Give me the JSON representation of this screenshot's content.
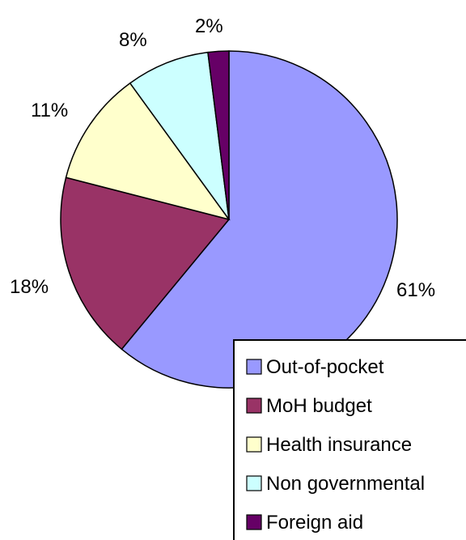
{
  "chart_data": {
    "type": "pie",
    "title": "",
    "slices": [
      {
        "label": "Out-of-pocket",
        "value": 61,
        "display": "61%",
        "color": "#9999ff"
      },
      {
        "label": "MoH budget",
        "value": 18,
        "display": "18%",
        "color": "#993366"
      },
      {
        "label": "Health insurance",
        "value": 11,
        "display": "11%",
        "color": "#ffffcc"
      },
      {
        "label": "Non governmental",
        "value": 8,
        "display": "8%",
        "color": "#ccffff"
      },
      {
        "label": "Foreign aid",
        "value": 2,
        "display": "2%",
        "color": "#660066"
      }
    ],
    "legend_position": "bottom-right"
  }
}
